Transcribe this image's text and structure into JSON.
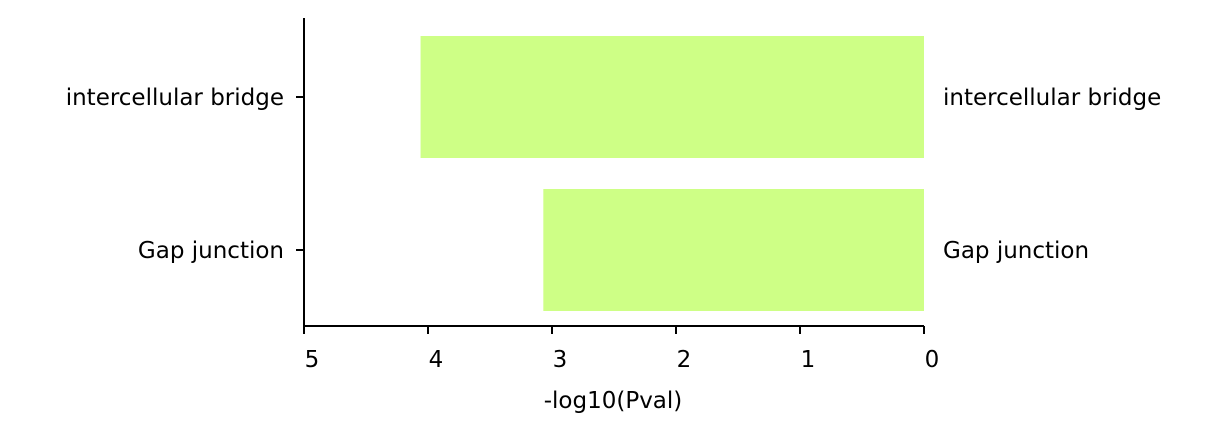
{
  "chart_data": {
    "type": "bar",
    "orientation": "horizontal",
    "categories": [
      "intercellular bridge",
      "Gap junction"
    ],
    "values": [
      4.06,
      3.07
    ],
    "xlabel": "-log10(Pval)",
    "xlim": [
      5,
      0
    ],
    "x_reversed": true,
    "xticks": [
      "5",
      "4",
      "3",
      "2",
      "1",
      "0"
    ],
    "bar_color": "#ceff86",
    "grid": false,
    "legend": "none"
  }
}
